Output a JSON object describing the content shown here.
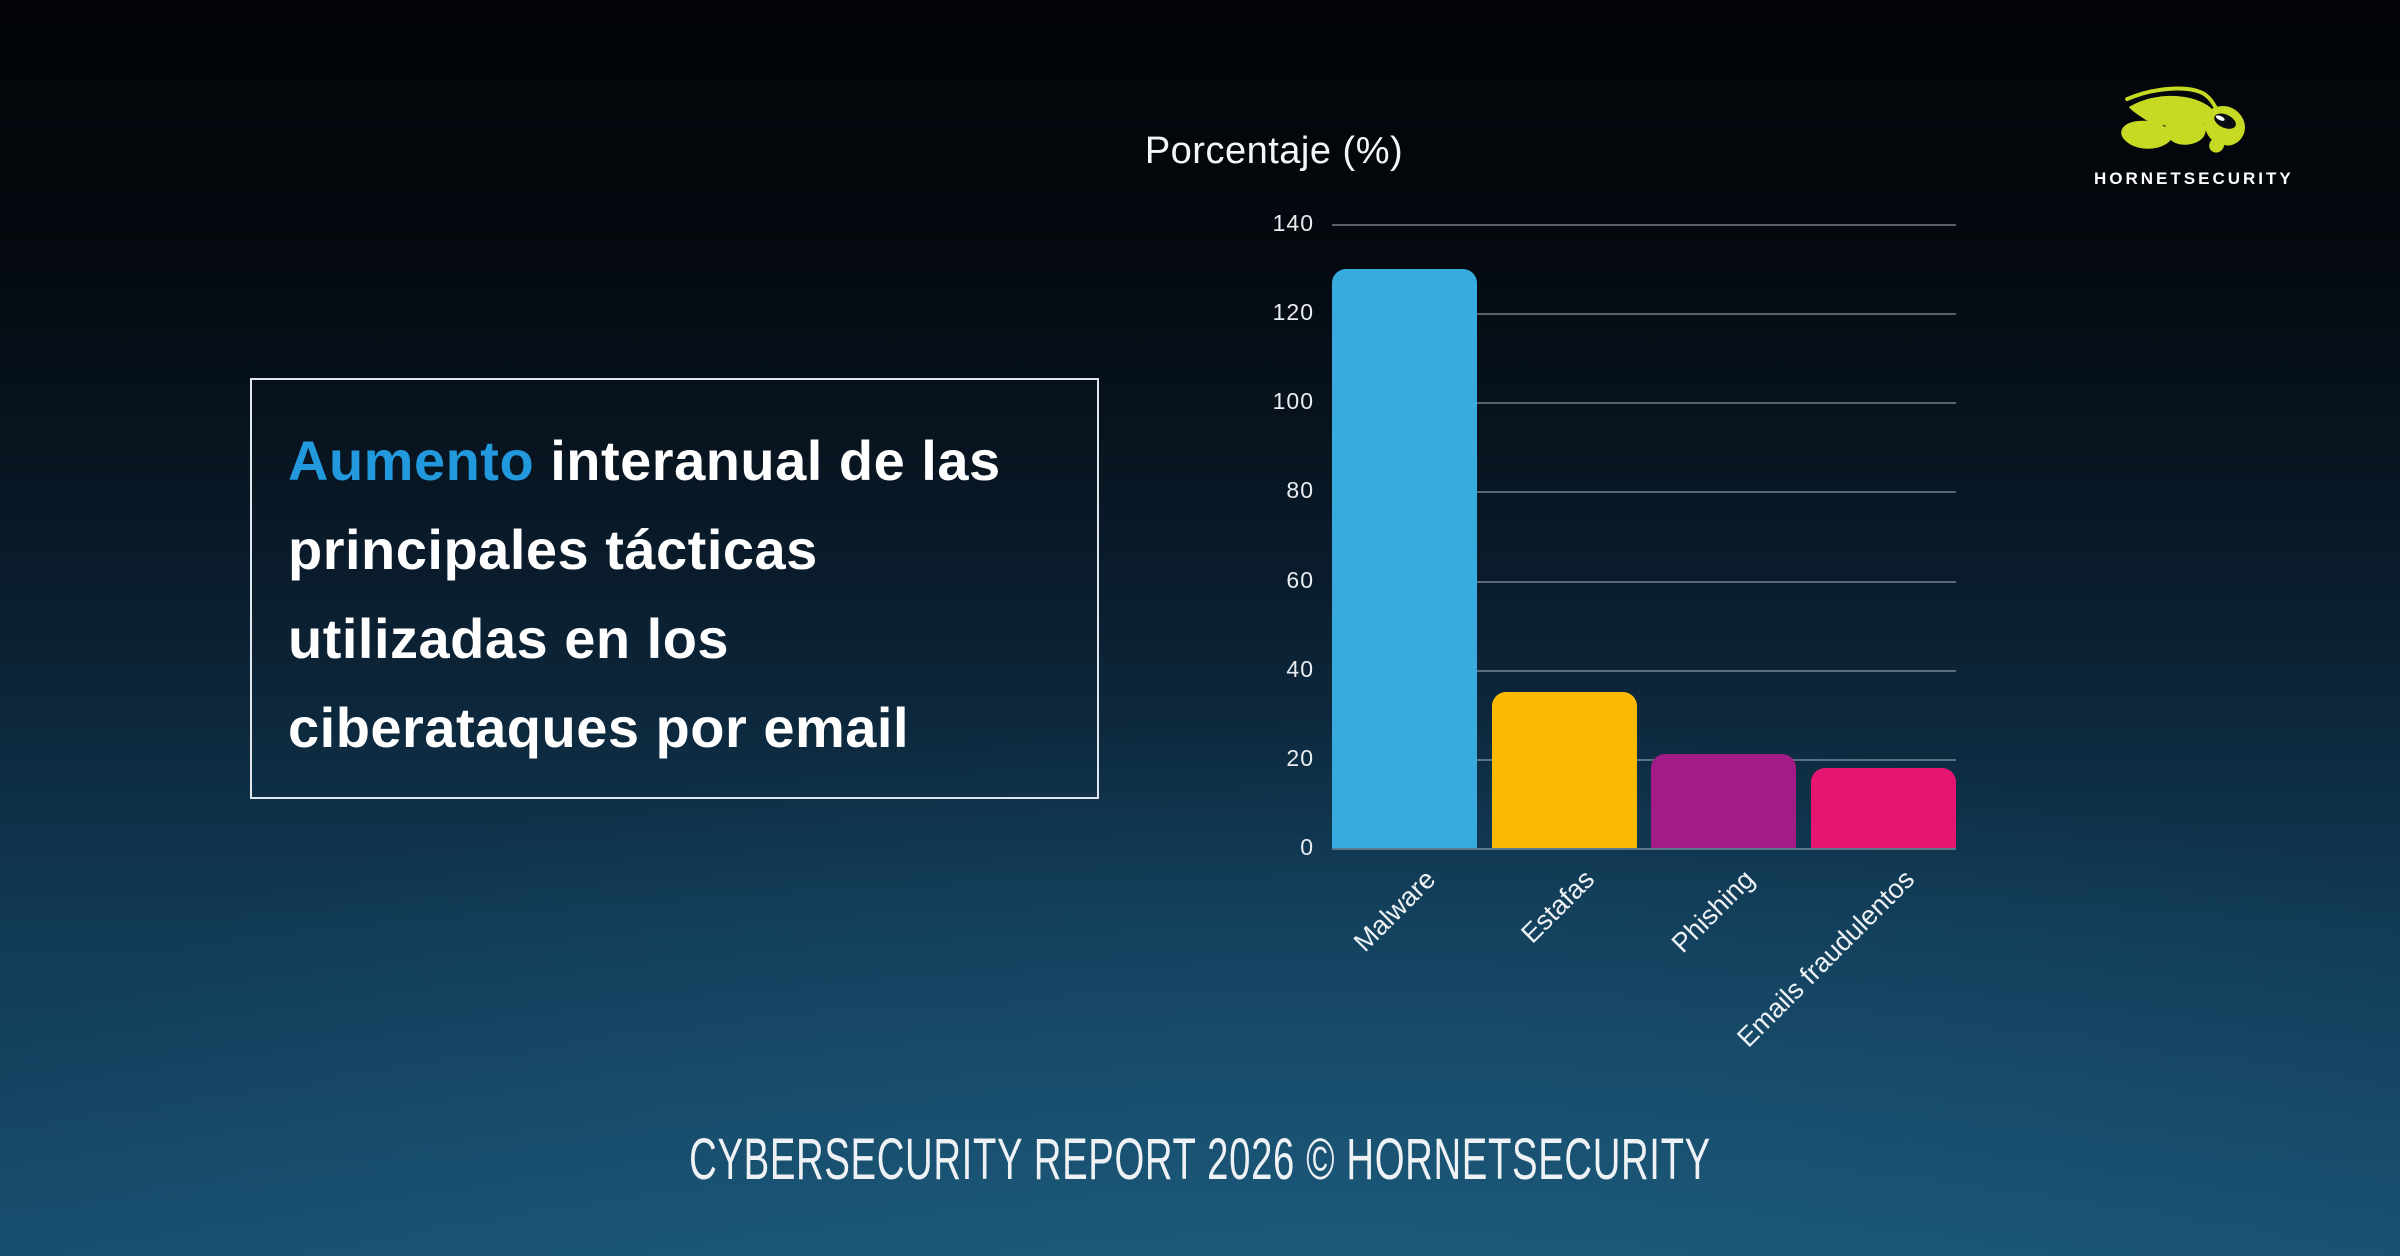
{
  "logo": {
    "brand": "HORNETSECURITY",
    "icon": "hornet-icon",
    "icon_color": "#c6da24"
  },
  "headline": {
    "accent": "Aumento",
    "line1_rest": " interanual de las",
    "line2": "principales tácticas",
    "line3": "utilizadas en los",
    "line4": "ciberataques por email",
    "accent_color": "#2399dd",
    "text_color": "#ffffff"
  },
  "footer": {
    "text": "CYBERSECURITY REPORT 2026 © HORNETSECURITY"
  },
  "chart_data": {
    "type": "bar",
    "title": "Porcentaje (%)",
    "categories": [
      "Malware",
      "Estafas",
      "Phishing",
      "Emails fraudulentos"
    ],
    "values": [
      130,
      35,
      21,
      18
    ],
    "bar_colors": [
      "#38abde",
      "#fcb905",
      "#a21b87",
      "#e6156f"
    ],
    "ylabel": "Porcentaje (%)",
    "xlabel": "",
    "ylim": [
      0,
      140
    ],
    "yticks": [
      140,
      120,
      100,
      80,
      60,
      40,
      20,
      0
    ],
    "grid": true,
    "legend": false,
    "gridline_color": "rgba(168,182,194,0.5)",
    "background": "dark blue gradient"
  }
}
